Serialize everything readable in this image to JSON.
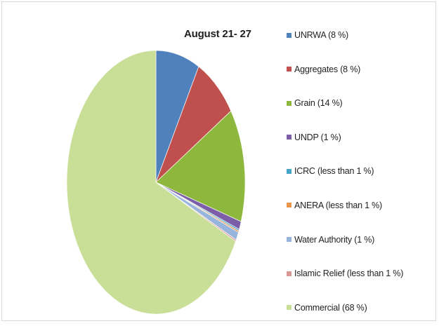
{
  "chart_data": {
    "type": "pie",
    "title": "August 21- 27",
    "legend_position": "right",
    "series": [
      {
        "name": "UNRWA (8 %)",
        "value": 8,
        "color": "#4f81bd"
      },
      {
        "name": "Aggregates (8 %)",
        "value": 8,
        "color": "#c0504d"
      },
      {
        "name": "Grain (14 %)",
        "value": 14,
        "color": "#8db83d"
      },
      {
        "name": "UNDP (1 %)",
        "value": 1,
        "color": "#7b5ea7"
      },
      {
        "name": "ICRC (less than 1 %)",
        "value": 0.2,
        "color": "#45a5c7"
      },
      {
        "name": "ANERA (less than 1 %)",
        "value": 0.2,
        "color": "#e7954a"
      },
      {
        "name": "Water Authority (1 %)",
        "value": 1,
        "color": "#97b4dc"
      },
      {
        "name": "Islamic Relief (less than 1 %)",
        "value": 0.2,
        "color": "#d99694"
      },
      {
        "name": "Commercial (68 %)",
        "value": 68,
        "color": "#c9df98"
      }
    ]
  }
}
